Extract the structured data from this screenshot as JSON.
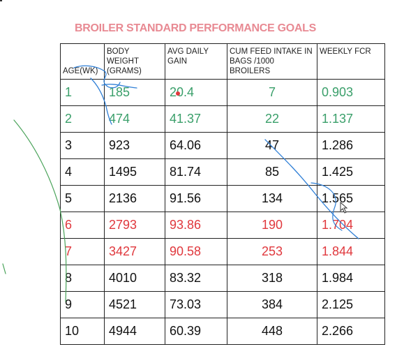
{
  "title": "BROILER STANDARD PERFORMANCE GOALS",
  "headers": [
    "AGE(WK)",
    "BODY WEIGHT (GRAMS)",
    "AVG DAILY GAIN",
    "CUM FEED INTAKE IN BAGS /1000 BROILERS",
    "WEEKLY FCR"
  ],
  "rows": [
    {
      "c": [
        "1",
        "185",
        "20.4",
        "7",
        "0.903"
      ],
      "color": "green"
    },
    {
      "c": [
        "2",
        "474",
        "41.37",
        "22",
        "1.137"
      ],
      "color": "green"
    },
    {
      "c": [
        "3",
        "923",
        "64.06",
        "47",
        "1.286"
      ],
      "color": "black"
    },
    {
      "c": [
        "4",
        "1495",
        "81.74",
        "85",
        "1.425"
      ],
      "color": "black"
    },
    {
      "c": [
        "5",
        "2136",
        "91.56",
        "134",
        "1.565"
      ],
      "color": "black"
    },
    {
      "c": [
        "6",
        "2793",
        "93.86",
        "190",
        "1.704"
      ],
      "color": "red"
    },
    {
      "c": [
        "7",
        "3427",
        "90.58",
        "253",
        "1.844"
      ],
      "color": "red"
    },
    {
      "c": [
        "8",
        "4010",
        "83.32",
        "318",
        "1.984"
      ],
      "color": "black"
    },
    {
      "c": [
        "9",
        "4521",
        "73.03",
        "384",
        "2.125"
      ],
      "color": "black"
    },
    {
      "c": [
        "10",
        "4944",
        "60.39",
        "448",
        "2.266"
      ],
      "color": "black"
    }
  ],
  "colors": {
    "title": "#e88a93",
    "green": "#3a9f6a",
    "red": "#e0383d",
    "ink_blue": "#2f7fd6",
    "ink_green": "#4aa35a"
  }
}
